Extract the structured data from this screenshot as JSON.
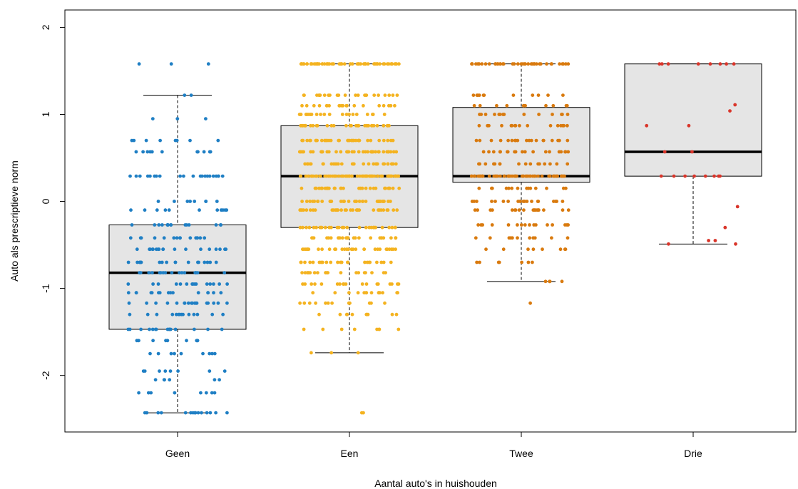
{
  "chart_data": {
    "type": "boxplot",
    "title": "",
    "xlabel": "Aantal auto's in huishouden",
    "ylabel": "Auto als prescriptieve norm",
    "ylim": [
      -2.65,
      2.2
    ],
    "yticks": [
      -2,
      -1,
      0,
      1,
      2
    ],
    "grid": false,
    "categories": [
      "Geen",
      "Een",
      "Twee",
      "Drie"
    ],
    "colors": [
      "#1f7fc4",
      "#f4b320",
      "#d97a0e",
      "#d9352a"
    ],
    "box_fill": "#e5e5e5",
    "boxes": [
      {
        "category": "Geen",
        "whisker_low": -2.43,
        "q1": -1.47,
        "median": -0.82,
        "q3": -0.27,
        "whisker_high": 1.22
      },
      {
        "category": "Een",
        "whisker_low": -1.74,
        "q1": -0.3,
        "median": 0.29,
        "q3": 0.87,
        "whisker_high": 1.58
      },
      {
        "category": "Twee",
        "whisker_low": -0.92,
        "q1": 0.22,
        "median": 0.29,
        "q3": 1.08,
        "whisker_high": 1.58
      },
      {
        "category": "Drie",
        "whisker_low": -0.49,
        "q1": 0.29,
        "median": 0.57,
        "q3": 1.58,
        "whisker_high": 1.58
      }
    ],
    "points": [
      {
        "category": "Geen",
        "n": 280,
        "levels": [
          -2.43,
          -2.2,
          -2.05,
          -1.95,
          -1.75,
          -1.6,
          -1.47,
          -1.3,
          -1.17,
          -1.05,
          -0.95,
          -0.82,
          -0.7,
          -0.55,
          -0.42,
          -0.27,
          -0.1,
          0.0,
          0.29,
          0.57,
          0.7,
          0.95,
          1.22,
          1.58
        ],
        "weights": [
          10,
          5,
          4,
          5,
          6,
          6,
          10,
          9,
          12,
          10,
          10,
          11,
          12,
          12,
          10,
          10,
          7,
          5,
          14,
          7,
          5,
          2,
          1,
          2
        ]
      },
      {
        "category": "Een",
        "n": 620,
        "levels": [
          -2.43,
          -1.74,
          -1.47,
          -1.3,
          -1.17,
          -1.05,
          -0.95,
          -0.82,
          -0.7,
          -0.55,
          -0.42,
          -0.3,
          -0.1,
          0.0,
          0.15,
          0.29,
          0.43,
          0.57,
          0.7,
          0.87,
          1.0,
          1.1,
          1.22,
          1.58
        ],
        "weights": [
          1,
          2,
          5,
          6,
          7,
          9,
          11,
          12,
          14,
          18,
          16,
          18,
          20,
          20,
          18,
          40,
          18,
          22,
          22,
          20,
          14,
          12,
          14,
          36
        ]
      },
      {
        "category": "Twee",
        "n": 300,
        "levels": [
          -1.17,
          -0.92,
          -0.7,
          -0.55,
          -0.42,
          -0.27,
          -0.1,
          0.0,
          0.15,
          0.29,
          0.43,
          0.57,
          0.7,
          0.87,
          1.0,
          1.1,
          1.22,
          1.58
        ],
        "weights": [
          1,
          3,
          5,
          6,
          8,
          12,
          14,
          14,
          10,
          40,
          12,
          14,
          14,
          12,
          10,
          8,
          8,
          30
        ]
      },
      {
        "category": "Drie",
        "n": 28,
        "levels": [
          -0.49,
          -0.45,
          -0.3,
          -0.06,
          0.29,
          0.57,
          0.87,
          1.04,
          1.11,
          1.58
        ],
        "weights": [
          2,
          2,
          1,
          1,
          8,
          2,
          2,
          1,
          1,
          8
        ]
      }
    ]
  }
}
